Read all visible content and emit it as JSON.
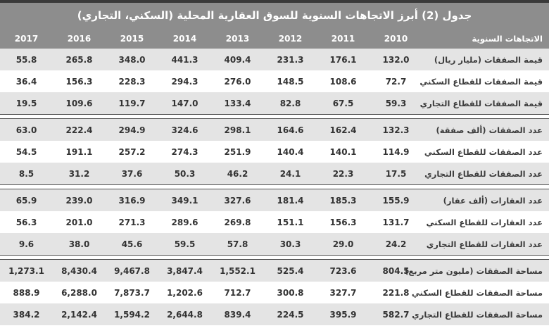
{
  "title": "جدول (2) أبرز الاتجاهات السنوية للسوق العقارية المحلية (السكني، التجاري)",
  "header": {
    "label": "الاتجاهات السنوية",
    "years": [
      "2010",
      "2011",
      "2012",
      "2013",
      "2014",
      "2015",
      "2016",
      "2017"
    ]
  },
  "sections": [
    {
      "rows": [
        {
          "label": "قيمة الصفقات (مليار ريال)",
          "values": [
            "132.0",
            "176.1",
            "231.3",
            "409.4",
            "441.3",
            "348.0",
            "265.8",
            "55.8"
          ]
        },
        {
          "label": "قيمة الصفقات للقطاع السكني",
          "values": [
            "72.7",
            "108.6",
            "148.5",
            "276.0",
            "294.3",
            "228.3",
            "156.3",
            "36.4"
          ]
        },
        {
          "label": "قيمة الصفقات للقطاع التجاري",
          "values": [
            "59.3",
            "67.5",
            "82.8",
            "133.4",
            "147.0",
            "119.7",
            "109.6",
            "19.5"
          ]
        }
      ]
    },
    {
      "rows": [
        {
          "label": "عدد الصفقات (ألف صفقة)",
          "values": [
            "132.3",
            "162.4",
            "164.6",
            "298.1",
            "324.6",
            "294.9",
            "222.4",
            "63.0"
          ]
        },
        {
          "label": "عدد الصفقات للقطاع السكني",
          "values": [
            "114.9",
            "140.1",
            "140.4",
            "251.9",
            "274.3",
            "257.2",
            "191.1",
            "54.5"
          ]
        },
        {
          "label": "عدد الصفقات للقطاع التجاري",
          "values": [
            "17.5",
            "22.3",
            "24.1",
            "46.2",
            "50.3",
            "37.6",
            "31.2",
            "8.5"
          ]
        }
      ]
    },
    {
      "rows": [
        {
          "label": "عدد العقارات (ألف عقار)",
          "values": [
            "155.9",
            "185.3",
            "181.4",
            "327.6",
            "349.1",
            "316.9",
            "239.0",
            "65.9"
          ]
        },
        {
          "label": "عدد العقارات للقطاع السكني",
          "values": [
            "131.7",
            "156.3",
            "151.1",
            "269.8",
            "289.6",
            "271.3",
            "201.0",
            "56.3"
          ]
        },
        {
          "label": "عدد العقارات للقطاع التجاري",
          "values": [
            "24.2",
            "29.0",
            "30.3",
            "57.8",
            "59.5",
            "45.6",
            "38.0",
            "9.6"
          ]
        }
      ]
    },
    {
      "rows": [
        {
          "label": "مساحة الصفقات (مليون متر مربع)",
          "values": [
            "804.5",
            "723.6",
            "525.4",
            "1,552.1",
            "3,847.4",
            "9,467.8",
            "8,430.4",
            "1,273.1"
          ]
        },
        {
          "label": "مساحة الصفقات للقطاع السكني",
          "values": [
            "221.8",
            "327.7",
            "300.8",
            "712.7",
            "1,202.6",
            "7,873.7",
            "6,288.0",
            "888.9"
          ]
        },
        {
          "label": "مساحة الصفقات للقطاع التجاري",
          "values": [
            "582.7",
            "395.9",
            "224.5",
            "839.4",
            "2,644.8",
            "1,594.2",
            "2,142.4",
            "384.2"
          ]
        }
      ]
    }
  ],
  "colors": {
    "top_border": "#3a3a3a",
    "header_bg": "#8d8d8d",
    "header_text": "#ffffff",
    "row_shade": "#e4e4e4",
    "row_white": "#ffffff",
    "cell_text": "#333333",
    "separator_line": "#4d4d4d"
  },
  "chart_data": {
    "type": "table",
    "title": "جدول (2) أبرز الاتجاهات السنوية للسوق العقارية المحلية (السكني، التجاري)",
    "columns": [
      "الاتجاهات السنوية",
      "2010",
      "2011",
      "2012",
      "2013",
      "2014",
      "2015",
      "2016",
      "2017"
    ],
    "rows": [
      {
        "label": "قيمة الصفقات (مليار ريال)",
        "values": [
          132.0,
          176.1,
          231.3,
          409.4,
          441.3,
          348.0,
          265.8,
          55.8
        ]
      },
      {
        "label": "قيمة الصفقات للقطاع السكني",
        "values": [
          72.7,
          108.6,
          148.5,
          276.0,
          294.3,
          228.3,
          156.3,
          36.4
        ]
      },
      {
        "label": "قيمة الصفقات للقطاع التجاري",
        "values": [
          59.3,
          67.5,
          82.8,
          133.4,
          147.0,
          119.7,
          109.6,
          19.5
        ]
      },
      {
        "label": "عدد الصفقات (ألف صفقة)",
        "values": [
          132.3,
          162.4,
          164.6,
          298.1,
          324.6,
          294.9,
          222.4,
          63.0
        ]
      },
      {
        "label": "عدد الصفقات للقطاع السكني",
        "values": [
          114.9,
          140.1,
          140.4,
          251.9,
          274.3,
          257.2,
          191.1,
          54.5
        ]
      },
      {
        "label": "عدد الصفقات للقطاع التجاري",
        "values": [
          17.5,
          22.3,
          24.1,
          46.2,
          50.3,
          37.6,
          31.2,
          8.5
        ]
      },
      {
        "label": "عدد العقارات (ألف عقار)",
        "values": [
          155.9,
          185.3,
          181.4,
          327.6,
          349.1,
          316.9,
          239.0,
          65.9
        ]
      },
      {
        "label": "عدد العقارات للقطاع السكني",
        "values": [
          131.7,
          156.3,
          151.1,
          269.8,
          289.6,
          271.3,
          201.0,
          56.3
        ]
      },
      {
        "label": "عدد العقارات للقطاع التجاري",
        "values": [
          24.2,
          29.0,
          30.3,
          57.8,
          59.5,
          45.6,
          38.0,
          9.6
        ]
      },
      {
        "label": "مساحة الصفقات (مليون متر مربع)",
        "values": [
          804.5,
          723.6,
          525.4,
          1552.1,
          3847.4,
          9467.8,
          8430.4,
          1273.1
        ]
      },
      {
        "label": "مساحة الصفقات للقطاع السكني",
        "values": [
          221.8,
          327.7,
          300.8,
          712.7,
          1202.6,
          7873.7,
          6288.0,
          888.9
        ]
      },
      {
        "label": "مساحة الصفقات للقطاع التجاري",
        "values": [
          582.7,
          395.9,
          224.5,
          839.4,
          2644.8,
          1594.2,
          2142.4,
          384.2
        ]
      }
    ]
  }
}
